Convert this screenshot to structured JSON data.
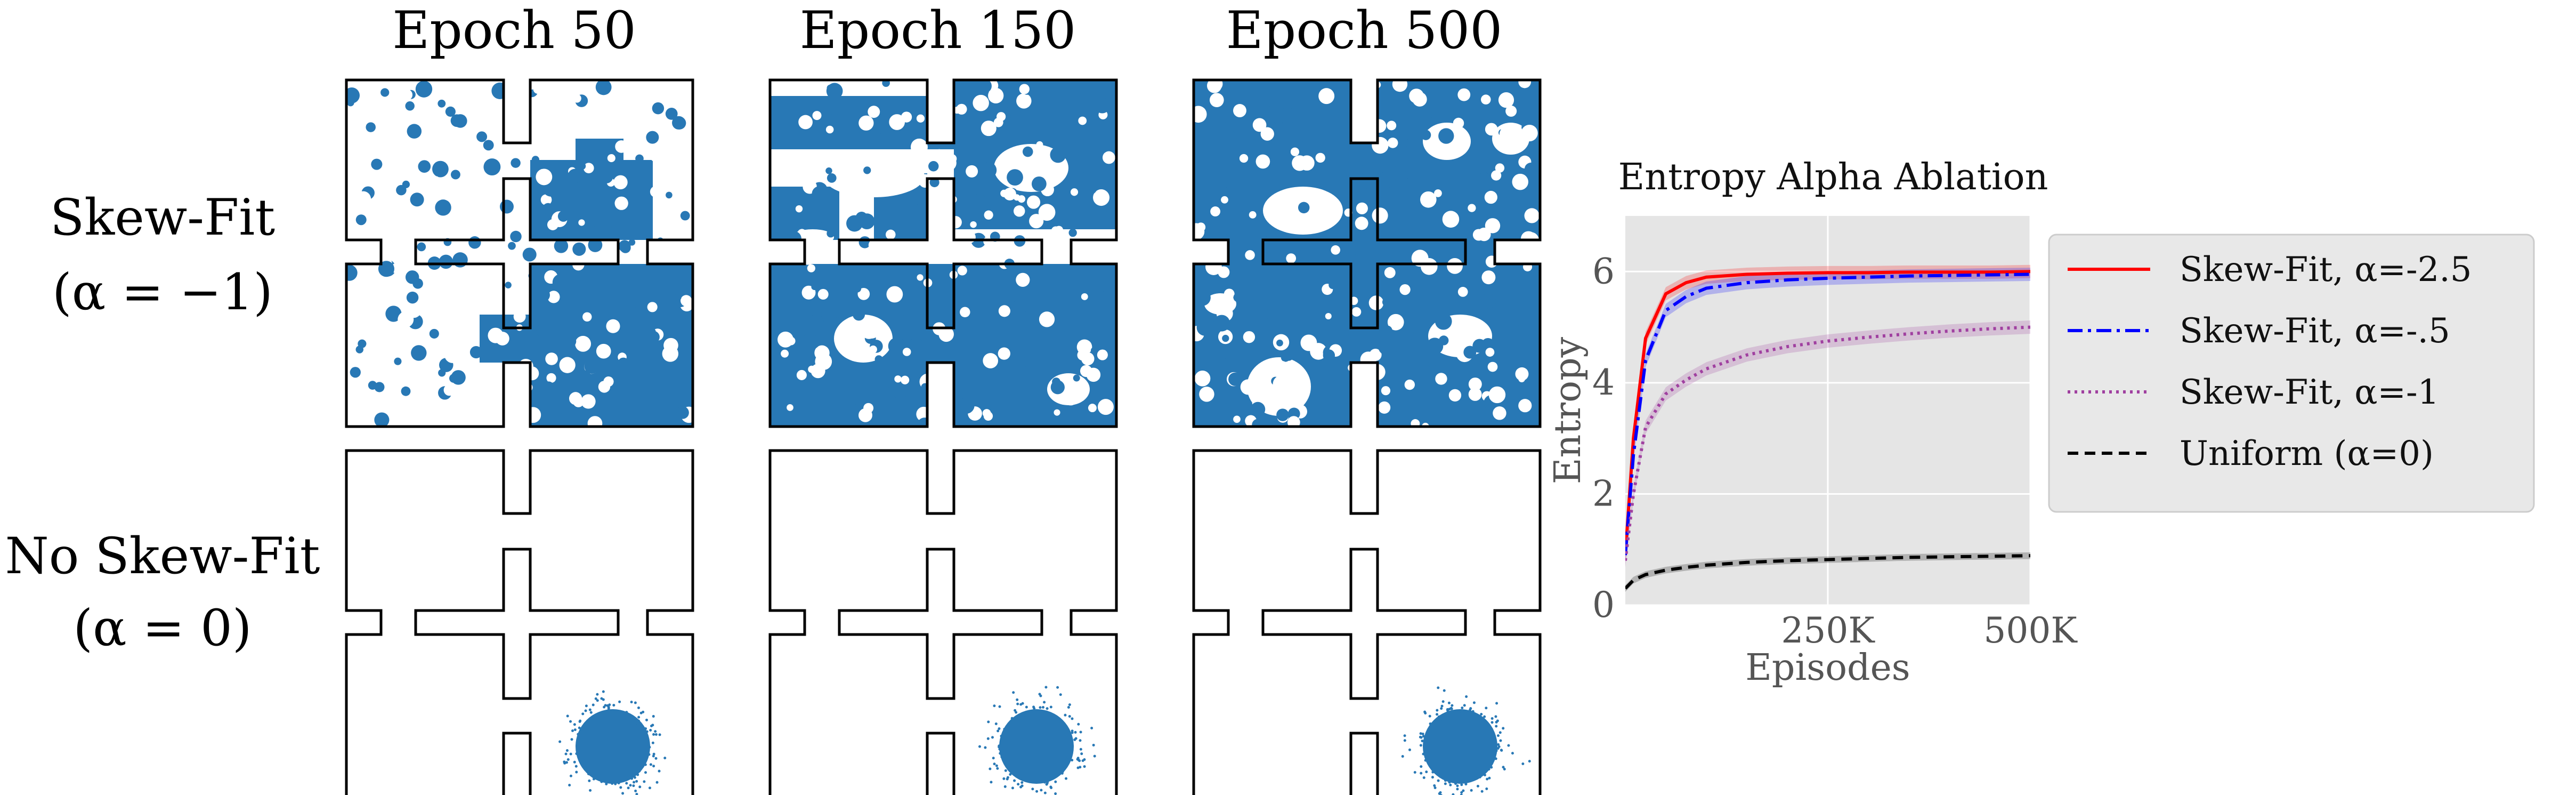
{
  "grid": {
    "columns": [
      "Epoch 50",
      "Epoch 150",
      "Epoch 500"
    ],
    "rows": [
      {
        "line1": "Skew-Fit",
        "line2": "(α = −1)"
      },
      {
        "line1": "No Skew-Fit",
        "line2": "(α = 0)"
      }
    ],
    "point_color": "#2878b5",
    "coverage": [
      [
        "partial",
        "most",
        "nearly-full"
      ],
      [
        "cluster-bottom-right",
        "cluster-bottom-right",
        "cluster-bottom-right"
      ]
    ]
  },
  "chart_data": {
    "type": "line",
    "title": "Entropy Alpha Ablation",
    "xlabel": "Episodes",
    "ylabel": "Entropy",
    "xlim": [
      0,
      500000
    ],
    "ylim": [
      0,
      7
    ],
    "xticks": [
      250000,
      500000
    ],
    "xtick_labels": [
      "250K",
      "500K"
    ],
    "yticks": [
      0,
      2,
      4,
      6
    ],
    "ytick_labels": [
      "0",
      "2",
      "4",
      "6"
    ],
    "background": "#e5e5e5",
    "grid": true,
    "legend_position": "right",
    "x": [
      0,
      10000,
      25000,
      50000,
      75000,
      100000,
      150000,
      200000,
      250000,
      300000,
      350000,
      400000,
      450000,
      500000
    ],
    "series": [
      {
        "name": "Skew-Fit, α=-2.5",
        "color": "#ff0000",
        "dash": "solid",
        "values": [
          0.9,
          3.0,
          4.8,
          5.6,
          5.8,
          5.9,
          5.95,
          5.97,
          5.98,
          5.98,
          5.99,
          5.99,
          5.99,
          6.0
        ]
      },
      {
        "name": "Skew-Fit, α=-.5",
        "color": "#0000ff",
        "dash": "dashdot",
        "values": [
          0.9,
          2.7,
          4.4,
          5.3,
          5.55,
          5.7,
          5.8,
          5.85,
          5.88,
          5.9,
          5.92,
          5.93,
          5.94,
          5.95
        ]
      },
      {
        "name": "Skew-Fit, α=-1",
        "color": "#a040a0",
        "dash": "dotted",
        "values": [
          0.8,
          2.0,
          3.2,
          3.8,
          4.05,
          4.25,
          4.5,
          4.65,
          4.75,
          4.82,
          4.88,
          4.93,
          4.97,
          5.0
        ]
      },
      {
        "name": "Uniform (α=0)",
        "color": "#000000",
        "dash": "dashed",
        "values": [
          0.3,
          0.45,
          0.55,
          0.63,
          0.68,
          0.72,
          0.77,
          0.8,
          0.82,
          0.84,
          0.86,
          0.87,
          0.88,
          0.89
        ]
      }
    ]
  }
}
